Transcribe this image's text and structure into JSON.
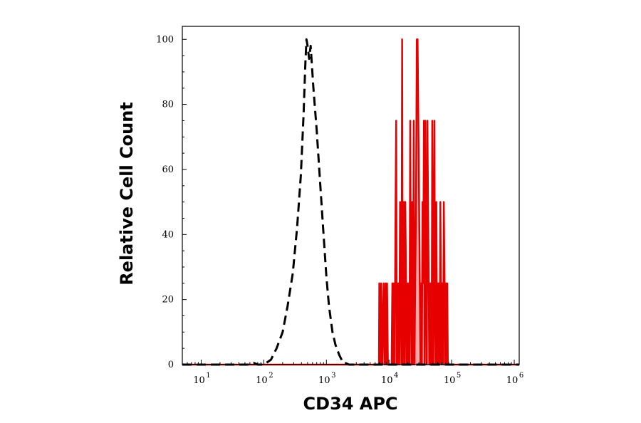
{
  "chart_data": {
    "type": "area",
    "xlabel": "CD34 APC",
    "ylabel": "Relative Cell Count",
    "xscale": "log",
    "xlim": [
      5,
      1200000
    ],
    "ylim": [
      0,
      104
    ],
    "x_ticks": [
      {
        "base": "10",
        "exp": "1",
        "value": 10
      },
      {
        "base": "10",
        "exp": "2",
        "value": 100
      },
      {
        "base": "10",
        "exp": "3",
        "value": 1000
      },
      {
        "base": "10",
        "exp": "4",
        "value": 10000
      },
      {
        "base": "10",
        "exp": "5",
        "value": 100000
      },
      {
        "base": "10",
        "exp": "6",
        "value": 1000000
      }
    ],
    "y_ticks": [
      {
        "label": "0",
        "value": 0
      },
      {
        "label": "20",
        "value": 20
      },
      {
        "label": "40",
        "value": 40
      },
      {
        "label": "60",
        "value": 60
      },
      {
        "label": "80",
        "value": 80
      },
      {
        "label": "100",
        "value": 100
      }
    ],
    "grid": false,
    "legend": "none",
    "series": [
      {
        "style": "dashed",
        "color": "#000000",
        "fill": "none",
        "x": [
          5,
          55,
          70,
          80,
          100,
          130,
          160,
          200,
          240,
          290,
          340,
          390,
          430,
          460,
          480,
          500,
          530,
          560,
          620,
          700,
          800,
          900,
          1000,
          1100,
          1250,
          1400,
          1600,
          1800,
          2000,
          2300,
          3000,
          10000,
          100000,
          1200000
        ],
        "values": [
          0,
          0,
          0.5,
          0,
          0,
          1.5,
          5,
          10,
          18,
          28,
          42,
          58,
          76,
          92,
          100,
          98,
          94,
          98,
          85,
          72,
          55,
          40,
          27,
          18,
          10,
          6,
          3,
          1,
          0.5,
          0,
          0,
          0,
          0,
          0
        ]
      },
      {
        "style": "solid",
        "color": "#e60000",
        "fill": "#f7a9a9",
        "x": [
          5,
          6900,
          7000,
          7300,
          7500,
          7800,
          8200,
          8500,
          8800,
          9000,
          9300,
          9600,
          10000,
          11000,
          11300,
          11600,
          11900,
          12200,
          12500,
          13000,
          13300,
          13600,
          13900,
          14200,
          14600,
          15000,
          15400,
          15800,
          16200,
          16600,
          17000,
          17400,
          17800,
          18200,
          18700,
          19200,
          19700,
          20200,
          20700,
          21200,
          21800,
          22400,
          23000,
          23600,
          24200,
          24800,
          25500,
          26200,
          27000,
          27800,
          28600,
          29400,
          30200,
          31000,
          31800,
          32600,
          33400,
          34300,
          35200,
          36100,
          37000,
          38000,
          39000,
          40000,
          41000,
          42000,
          43000,
          44000,
          45000,
          46000,
          47000,
          48000,
          49000,
          50000,
          51000,
          52000,
          53000,
          54000,
          55500,
          57000,
          58500,
          60000,
          61500,
          63000,
          64500,
          66000,
          67500,
          69000,
          71000,
          73000,
          75000,
          77000,
          79000,
          81000,
          83000,
          85000,
          87000,
          89000,
          91000,
          93000,
          95000,
          97000,
          99000,
          101000,
          103000,
          105000,
          107000,
          110000,
          112000,
          115000,
          1200000
        ],
        "values": [
          0,
          0,
          25,
          0,
          25,
          0,
          25,
          0,
          25,
          0,
          25,
          0,
          0,
          0,
          25,
          0,
          25,
          0,
          25,
          75,
          0,
          25,
          0,
          25,
          0,
          50,
          25,
          0,
          100,
          0,
          25,
          50,
          0,
          50,
          25,
          0,
          25,
          0,
          25,
          0,
          75,
          25,
          0,
          50,
          0,
          75,
          0,
          25,
          50,
          100,
          100,
          75,
          50,
          25,
          0,
          25,
          0,
          50,
          25,
          75,
          0,
          75,
          25,
          0,
          75,
          50,
          25,
          0,
          25,
          0,
          25,
          0,
          75,
          25,
          0,
          25,
          75,
          25,
          0,
          50,
          0,
          25,
          0,
          25,
          0,
          50,
          25,
          0,
          25,
          0,
          50,
          25,
          0,
          25,
          0,
          25,
          0,
          0,
          0,
          0,
          0,
          0,
          0,
          0,
          0,
          0,
          0,
          0,
          0,
          0,
          0
        ]
      }
    ]
  }
}
